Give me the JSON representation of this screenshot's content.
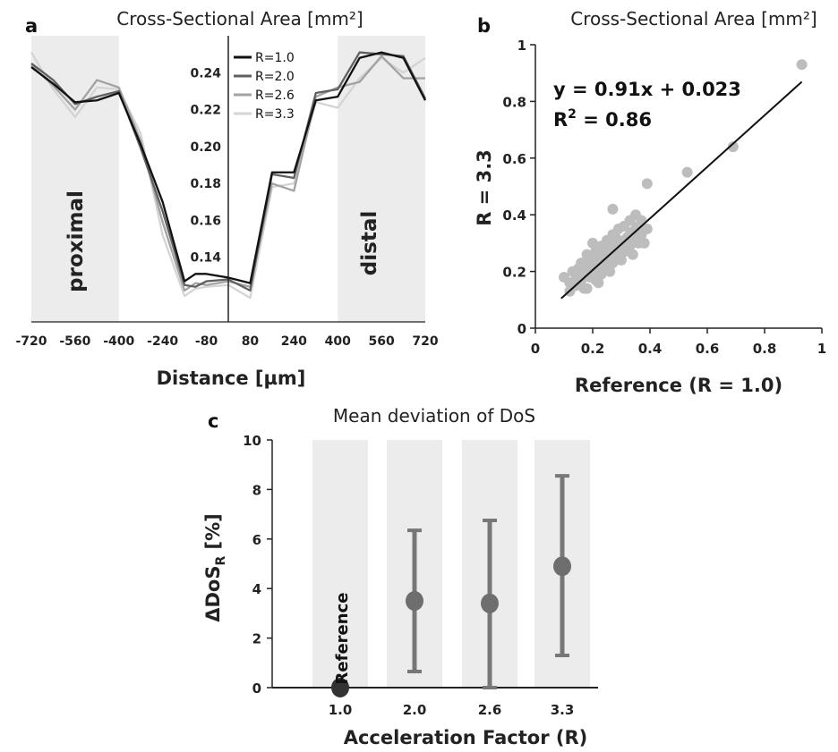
{
  "colors": {
    "shade": "#ececec",
    "r1": "#111111",
    "r2": "#606060",
    "r26": "#a2a2a2",
    "r33": "#d4d4d4",
    "scatter": "#bdbdbd",
    "fit": "#111111",
    "errorbar": "#777777",
    "marker": "#6e6e6e",
    "reference_marker": "#333333"
  },
  "chart_data": [
    {
      "panel": "a",
      "type": "line",
      "title": "Cross-Sectional Area [mm²]",
      "xlabel": "Distance [µm]",
      "ylabel": "",
      "xlim": [
        -720,
        720
      ],
      "ylim": [
        0.105,
        0.26
      ],
      "xticks": [
        "-720",
        "-560",
        "-400",
        "-240",
        "-80",
        "80",
        "240",
        "400",
        "560",
        "720"
      ],
      "yticks": [
        "0.14",
        "0.16",
        "0.18",
        "0.20",
        "0.22",
        "0.24"
      ],
      "yticks_values": [
        0.14,
        0.16,
        0.18,
        0.2,
        0.22,
        0.24
      ],
      "xticks_values": [
        -720,
        -560,
        -400,
        -240,
        -80,
        80,
        240,
        400,
        560,
        720
      ],
      "shaded_regions": [
        {
          "label": "proximal",
          "x0": -720,
          "x1": -400
        },
        {
          "label": "distal",
          "x0": 400,
          "x1": 720
        }
      ],
      "vline_x": 0,
      "legend": [
        "R=1.0",
        "R=2.0",
        "R=2.6",
        "R=3.3"
      ],
      "x": [
        -720,
        -640,
        -560,
        -480,
        -400,
        -320,
        -240,
        -160,
        -120,
        -80,
        0,
        80,
        160,
        240,
        320,
        400,
        480,
        560,
        640,
        720
      ],
      "series": [
        {
          "name": "R=1.0",
          "values": [
            0.243,
            0.234,
            0.224,
            0.225,
            0.229,
            0.201,
            0.17,
            0.127,
            0.131,
            0.131,
            0.129,
            0.126,
            0.186,
            0.186,
            0.225,
            0.227,
            0.248,
            0.251,
            0.248,
            0.225
          ]
        },
        {
          "name": "R=2.0",
          "values": [
            0.245,
            0.236,
            0.223,
            0.227,
            0.23,
            0.199,
            0.165,
            0.125,
            0.124,
            0.127,
            0.128,
            0.122,
            0.185,
            0.183,
            0.229,
            0.231,
            0.251,
            0.25,
            0.249,
            0.226
          ]
        },
        {
          "name": "R=2.6",
          "values": [
            0.244,
            0.233,
            0.22,
            0.236,
            0.232,
            0.203,
            0.159,
            0.122,
            0.126,
            0.125,
            0.127,
            0.124,
            0.18,
            0.176,
            0.227,
            0.232,
            0.235,
            0.249,
            0.237,
            0.237
          ]
        },
        {
          "name": "R=3.3",
          "values": [
            0.251,
            0.231,
            0.216,
            0.232,
            0.231,
            0.207,
            0.152,
            0.119,
            0.123,
            0.124,
            0.125,
            0.118,
            0.178,
            0.18,
            0.224,
            0.221,
            0.237,
            0.248,
            0.24,
            0.248
          ]
        }
      ]
    },
    {
      "panel": "b",
      "type": "scatter",
      "title": "Cross-Sectional Area [mm²]",
      "xlabel": "Reference (R = 1.0)",
      "ylabel": "R = 3.3",
      "xlim": [
        0,
        1
      ],
      "ylim": [
        0,
        1
      ],
      "xticks": [
        "0",
        "0.2",
        "0.4",
        "0.6",
        "0.8",
        "1"
      ],
      "yticks": [
        "0",
        "0.2",
        "0.4",
        "0.6",
        "0.8",
        "1"
      ],
      "ticks_values": [
        0,
        0.2,
        0.4,
        0.6,
        0.8,
        1
      ],
      "equation": "y = 0.91x + 0.023",
      "r2_prefix": "R",
      "r2_sup": "2",
      "r2_value": " = 0.86",
      "fit": {
        "slope": 0.91,
        "intercept": 0.023,
        "x_range": [
          0.09,
          0.93
        ]
      },
      "points": [
        [
          0.93,
          0.93
        ],
        [
          0.69,
          0.64
        ],
        [
          0.53,
          0.55
        ],
        [
          0.39,
          0.51
        ],
        [
          0.27,
          0.42
        ],
        [
          0.1,
          0.18
        ],
        [
          0.12,
          0.16
        ],
        [
          0.13,
          0.2
        ],
        [
          0.14,
          0.15
        ],
        [
          0.15,
          0.21
        ],
        [
          0.16,
          0.17
        ],
        [
          0.17,
          0.19
        ],
        [
          0.18,
          0.22
        ],
        [
          0.18,
          0.14
        ],
        [
          0.19,
          0.24
        ],
        [
          0.2,
          0.2
        ],
        [
          0.21,
          0.17
        ],
        [
          0.21,
          0.27
        ],
        [
          0.22,
          0.22
        ],
        [
          0.23,
          0.19
        ],
        [
          0.23,
          0.29
        ],
        [
          0.24,
          0.24
        ],
        [
          0.25,
          0.21
        ],
        [
          0.25,
          0.31
        ],
        [
          0.26,
          0.26
        ],
        [
          0.27,
          0.23
        ],
        [
          0.27,
          0.33
        ],
        [
          0.28,
          0.28
        ],
        [
          0.29,
          0.25
        ],
        [
          0.29,
          0.35
        ],
        [
          0.3,
          0.3
        ],
        [
          0.31,
          0.27
        ],
        [
          0.31,
          0.36
        ],
        [
          0.32,
          0.32
        ],
        [
          0.33,
          0.29
        ],
        [
          0.33,
          0.38
        ],
        [
          0.34,
          0.34
        ],
        [
          0.35,
          0.31
        ],
        [
          0.35,
          0.4
        ],
        [
          0.36,
          0.36
        ],
        [
          0.37,
          0.33
        ],
        [
          0.37,
          0.38
        ],
        [
          0.38,
          0.3
        ],
        [
          0.39,
          0.35
        ],
        [
          0.2,
          0.25
        ],
        [
          0.22,
          0.16
        ],
        [
          0.24,
          0.27
        ],
        [
          0.26,
          0.2
        ],
        [
          0.28,
          0.32
        ],
        [
          0.3,
          0.24
        ],
        [
          0.32,
          0.28
        ],
        [
          0.34,
          0.26
        ],
        [
          0.36,
          0.3
        ],
        [
          0.15,
          0.18
        ],
        [
          0.17,
          0.14
        ],
        [
          0.19,
          0.18
        ],
        [
          0.21,
          0.23
        ],
        [
          0.23,
          0.25
        ],
        [
          0.25,
          0.28
        ],
        [
          0.27,
          0.3
        ],
        [
          0.29,
          0.28
        ],
        [
          0.31,
          0.31
        ],
        [
          0.33,
          0.33
        ],
        [
          0.35,
          0.35
        ],
        [
          0.12,
          0.13
        ],
        [
          0.14,
          0.19
        ],
        [
          0.16,
          0.23
        ],
        [
          0.18,
          0.26
        ],
        [
          0.2,
          0.3
        ],
        [
          0.22,
          0.27
        ]
      ]
    },
    {
      "panel": "c",
      "type": "errorbar",
      "title": "Mean deviation of DoS",
      "xlabel": "Acceleration Factor (R)",
      "ylabel_main": "ΔDoS",
      "ylabel_sub": "R",
      "ylabel_unit": " [%]",
      "ylim": [
        0,
        10
      ],
      "yticks": [
        "0",
        "2",
        "4",
        "6",
        "8",
        "10"
      ],
      "yticks_values": [
        0,
        2,
        4,
        6,
        8,
        10
      ],
      "categories": [
        "1.0",
        "2.0",
        "2.6",
        "3.3"
      ],
      "values": [
        0.0,
        3.5,
        3.4,
        4.9
      ],
      "lower": [
        0.0,
        0.65,
        0.0,
        1.3
      ],
      "upper": [
        0.0,
        6.35,
        6.75,
        8.55
      ],
      "reference_label": "Reference"
    }
  ]
}
